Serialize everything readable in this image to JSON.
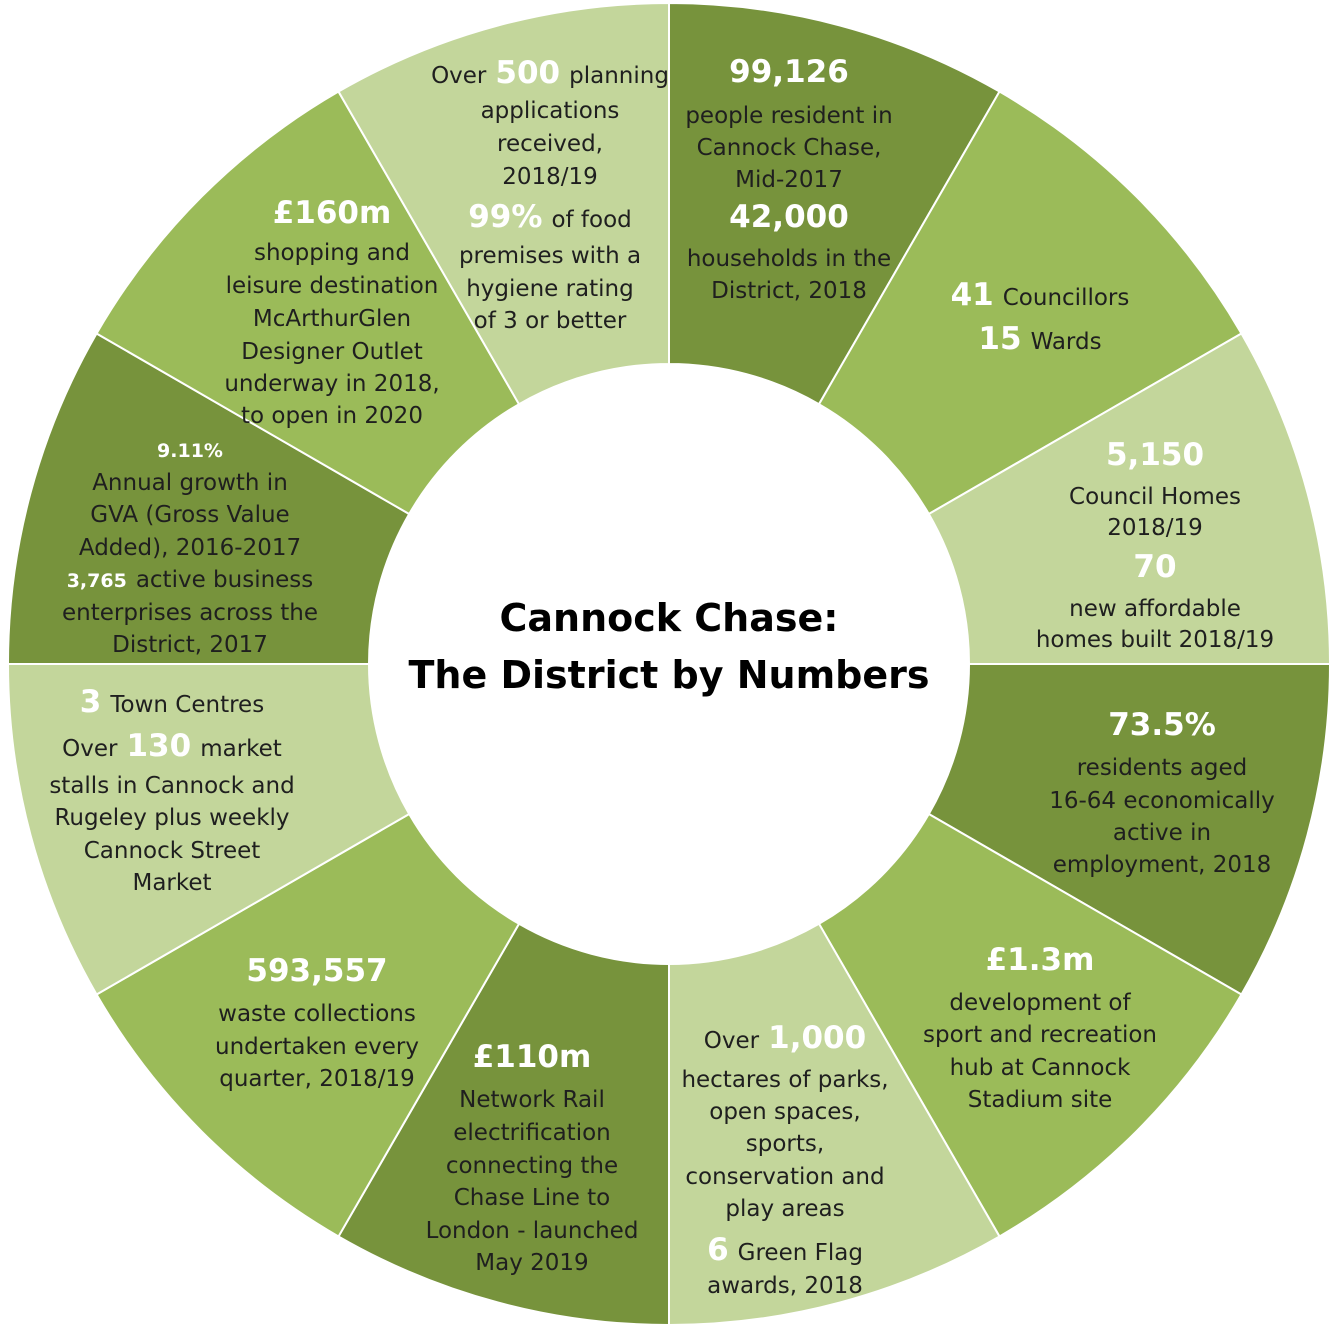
{
  "title_lines": [
    "Cannock Chase:",
    "The District by Numbers"
  ],
  "segments": [
    {
      "color": "#77933c",
      "lines": [
        [
          {
            "text": "99,126",
            "style": "big"
          }
        ],
        [
          {
            "text": "people resident in",
            "style": "normal"
          }
        ],
        [
          {
            "text": "Cannock Chase,",
            "style": "normal"
          }
        ],
        [
          {
            "text": "Mid-2017",
            "style": "normal"
          }
        ],
        [
          {
            "text": "42,000",
            "style": "big"
          }
        ],
        [
          {
            "text": "households in the",
            "style": "normal"
          }
        ],
        [
          {
            "text": "District, 2018",
            "style": "normal"
          }
        ]
      ]
    },
    {
      "color": "#9bbb59",
      "lines": [
        [
          {
            "text": "41",
            "style": "big"
          },
          {
            "text": "Councillors",
            "style": "normal"
          }
        ],
        [
          {
            "text": "15",
            "style": "big"
          },
          {
            "text": "Wards",
            "style": "normal"
          }
        ]
      ]
    },
    {
      "color": "#c3d69b",
      "lines": [
        [
          {
            "text": "5,150",
            "style": "big"
          }
        ],
        [
          {
            "text": "Council Homes",
            "style": "normal"
          }
        ],
        [
          {
            "text": "2018/19",
            "style": "normal"
          }
        ],
        [
          {
            "text": "70",
            "style": "big"
          }
        ],
        [
          {
            "text": "new affordable",
            "style": "normal"
          }
        ],
        [
          {
            "text": "homes built 2018/19",
            "style": "normal"
          }
        ]
      ]
    },
    {
      "color": "#77933c",
      "lines": [
        [
          {
            "text": "73.5%",
            "style": "big"
          }
        ],
        [
          {
            "text": "residents aged",
            "style": "normal"
          }
        ],
        [
          {
            "text": "16-64 economically",
            "style": "normal"
          }
        ],
        [
          {
            "text": "active in",
            "style": "normal"
          }
        ],
        [
          {
            "text": "employment, 2018",
            "style": "normal"
          }
        ]
      ]
    },
    {
      "color": "#9bbb59",
      "lines": [
        [
          {
            "text": "£1.3m",
            "style": "big"
          }
        ],
        [
          {
            "text": "development of",
            "style": "normal"
          }
        ],
        [
          {
            "text": "sport and recreation",
            "style": "normal"
          }
        ],
        [
          {
            "text": "hub at Cannock",
            "style": "normal"
          }
        ],
        [
          {
            "text": "Stadium site",
            "style": "normal"
          }
        ]
      ]
    },
    {
      "color": "#c3d69b",
      "lines": [
        [
          {
            "text": "Over",
            "style": "normal"
          },
          {
            "text": "1,000",
            "style": "big"
          }
        ],
        [
          {
            "text": "hectares of parks,",
            "style": "normal"
          }
        ],
        [
          {
            "text": "open spaces,",
            "style": "normal"
          }
        ],
        [
          {
            "text": "sports,",
            "style": "normal"
          }
        ],
        [
          {
            "text": "conservation and",
            "style": "normal"
          }
        ],
        [
          {
            "text": "play areas",
            "style": "normal"
          }
        ],
        [
          {
            "text": "6",
            "style": "big"
          },
          {
            "text": "Green Flag",
            "style": "normal"
          }
        ],
        [
          {
            "text": "awards, 2018",
            "style": "normal"
          }
        ]
      ]
    },
    {
      "color": "#77933c",
      "lines": [
        [
          {
            "text": "£110m",
            "style": "big"
          }
        ],
        [
          {
            "text": "Network Rail",
            "style": "normal"
          }
        ],
        [
          {
            "text": "electrification",
            "style": "normal"
          }
        ],
        [
          {
            "text": "connecting the",
            "style": "normal"
          }
        ],
        [
          {
            "text": "Chase Line to",
            "style": "normal"
          }
        ],
        [
          {
            "text": "London - launched",
            "style": "normal"
          }
        ],
        [
          {
            "text": "May 2019",
            "style": "normal"
          }
        ]
      ]
    },
    {
      "color": "#9bbb59",
      "lines": [
        [
          {
            "text": "593,557",
            "style": "big"
          }
        ],
        [
          {
            "text": "waste collections",
            "style": "normal"
          }
        ],
        [
          {
            "text": "undertaken every",
            "style": "normal"
          }
        ],
        [
          {
            "text": "quarter, 2018/19",
            "style": "normal"
          }
        ]
      ]
    },
    {
      "color": "#c3d69b",
      "lines": [
        [
          {
            "text": "3",
            "style": "big"
          },
          {
            "text": "Town Centres",
            "style": "normal"
          }
        ],
        [
          {
            "text": "Over",
            "style": "normal"
          },
          {
            "text": "130",
            "style": "big"
          },
          {
            "text": "market",
            "style": "normal"
          }
        ],
        [
          {
            "text": "stalls in Cannock and",
            "style": "normal"
          }
        ],
        [
          {
            "text": "Rugeley plus weekly",
            "style": "normal"
          }
        ],
        [
          {
            "text": "Cannock Street",
            "style": "normal"
          }
        ],
        [
          {
            "text": "Market",
            "style": "normal"
          }
        ]
      ]
    },
    {
      "color": "#77933c",
      "lines": [
        [
          {
            "text": "9.11%",
            "style": "small"
          }
        ],
        [
          {
            "text": "Annual growth in",
            "style": "normal"
          }
        ],
        [
          {
            "text": "GVA (Gross Value",
            "style": "normal"
          }
        ],
        [
          {
            "text": "Added), 2016-2017",
            "style": "normal"
          }
        ],
        [
          {
            "text": "3,765",
            "style": "small"
          },
          {
            "text": "active business",
            "style": "normal"
          }
        ],
        [
          {
            "text": "enterprises across the",
            "style": "normal"
          }
        ],
        [
          {
            "text": "District, 2017",
            "style": "normal"
          }
        ]
      ]
    },
    {
      "color": "#9bbb59",
      "lines": [
        [
          {
            "text": "£160m",
            "style": "big"
          }
        ],
        [
          {
            "text": "shopping and",
            "style": "normal"
          }
        ],
        [
          {
            "text": "leisure destination",
            "style": "normal"
          }
        ],
        [
          {
            "text": "McArthurGlen",
            "style": "normal"
          }
        ],
        [
          {
            "text": "Designer Outlet",
            "style": "normal"
          }
        ],
        [
          {
            "text": "underway in 2018,",
            "style": "normal"
          }
        ],
        [
          {
            "text": "to open in 2020",
            "style": "normal"
          }
        ]
      ]
    },
    {
      "color": "#c3d69b",
      "lines": [
        [
          {
            "text": "Over",
            "style": "normal"
          },
          {
            "text": "500",
            "style": "big"
          },
          {
            "text": "planning",
            "style": "normal"
          }
        ],
        [
          {
            "text": "applications",
            "style": "normal"
          }
        ],
        [
          {
            "text": "received,",
            "style": "normal"
          }
        ],
        [
          {
            "text": "2018/19",
            "style": "normal"
          }
        ],
        [
          {
            "text": "99%",
            "style": "big"
          },
          {
            "text": "of food",
            "style": "normal"
          }
        ],
        [
          {
            "text": "premises with a",
            "style": "normal"
          }
        ],
        [
          {
            "text": "hygiene rating",
            "style": "normal"
          }
        ],
        [
          {
            "text": "of 3 or better",
            "style": "normal"
          }
        ]
      ]
    }
  ]
}
